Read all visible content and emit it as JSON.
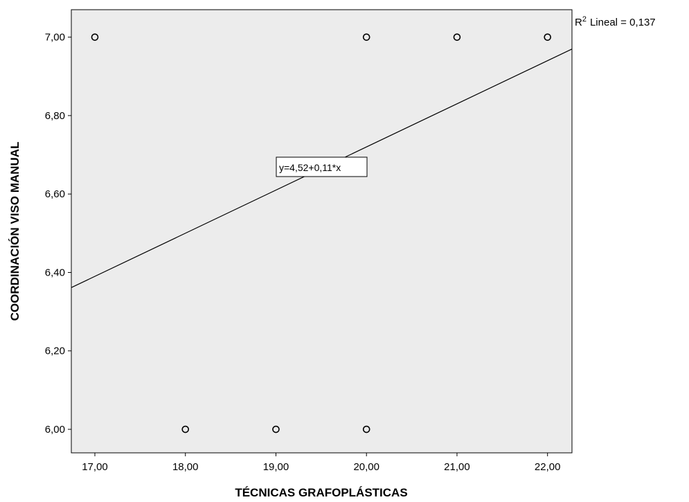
{
  "chart_data": {
    "type": "scatter",
    "title": "",
    "xlabel": "TÉCNICAS GRAFOPLÁSTICAS",
    "ylabel": "COORDINACIÓN VISO MANUAL",
    "xlim": [
      16.74,
      22.27
    ],
    "ylim": [
      5.94,
      7.07
    ],
    "x_ticks": [
      17,
      18,
      19,
      20,
      21,
      22
    ],
    "x_tick_labels": [
      "17,00",
      "18,00",
      "19,00",
      "20,00",
      "21,00",
      "22,00"
    ],
    "y_ticks": [
      6.0,
      6.2,
      6.4,
      6.6,
      6.8,
      7.0
    ],
    "y_tick_labels": [
      "6,00",
      "6,20",
      "6,40",
      "6,60",
      "6,80",
      "7,00"
    ],
    "points": [
      {
        "x": 17,
        "y": 7
      },
      {
        "x": 20,
        "y": 7
      },
      {
        "x": 21,
        "y": 7
      },
      {
        "x": 22,
        "y": 7
      },
      {
        "x": 18,
        "y": 6
      },
      {
        "x": 19,
        "y": 6
      },
      {
        "x": 20,
        "y": 6
      }
    ],
    "fit_line": {
      "intercept": 4.52,
      "slope": 0.11
    },
    "fit_equation_label": "y=4,52+0,11*x",
    "r2_label": "Lineal = 0,137",
    "r2_prefix": "R",
    "r2_superscript": "2",
    "plot_background": "#ececec",
    "marker_color": "#000000",
    "line_color": "#000000",
    "grid": false
  }
}
